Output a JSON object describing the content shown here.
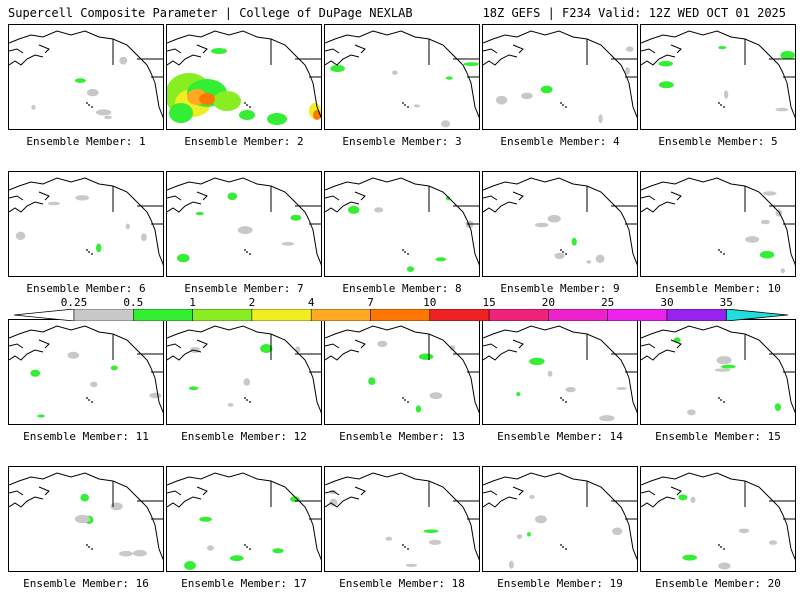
{
  "header": {
    "title": "Supercell Composite Parameter | College of DuPage NEXLAB",
    "run_info": "18Z GEFS | F234 Valid: 12Z WED OCT 01 2025"
  },
  "colorbar": {
    "labels": [
      "0.25",
      "0.5",
      "1",
      "2",
      "4",
      "7",
      "10",
      "15",
      "20",
      "25",
      "30",
      "35"
    ],
    "colors": [
      "#c8c8c8",
      "#33ee33",
      "#88ee22",
      "#eeee22",
      "#ffaa22",
      "#ff7700",
      "#ee2222",
      "#ee2277",
      "#ee22cc",
      "#ee22ee",
      "#9922ee",
      "#aa66dd",
      "#22dddd"
    ]
  },
  "panel_caption_prefix": "Ensemble Member:",
  "members": [
    {
      "id": "1",
      "activity": "low"
    },
    {
      "id": "2",
      "activity": "high"
    },
    {
      "id": "3",
      "activity": "low"
    },
    {
      "id": "4",
      "activity": "low"
    },
    {
      "id": "5",
      "activity": "low"
    },
    {
      "id": "6",
      "activity": "low"
    },
    {
      "id": "7",
      "activity": "low"
    },
    {
      "id": "8",
      "activity": "low"
    },
    {
      "id": "9",
      "activity": "low"
    },
    {
      "id": "10",
      "activity": "low"
    },
    {
      "id": "11",
      "activity": "low"
    },
    {
      "id": "12",
      "activity": "low"
    },
    {
      "id": "13",
      "activity": "low"
    },
    {
      "id": "14",
      "activity": "low"
    },
    {
      "id": "15",
      "activity": "low"
    },
    {
      "id": "16",
      "activity": "low"
    },
    {
      "id": "17",
      "activity": "low"
    },
    {
      "id": "18",
      "activity": "low"
    },
    {
      "id": "19",
      "activity": "low"
    },
    {
      "id": "20",
      "activity": "low"
    }
  ]
}
